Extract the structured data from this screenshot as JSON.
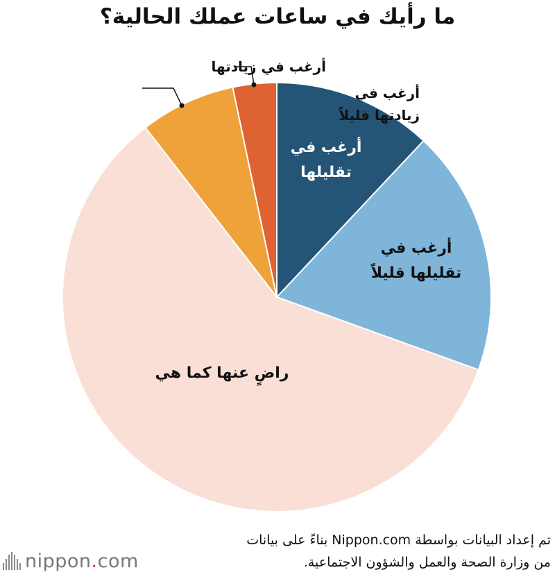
{
  "chart_data": {
    "type": "pie",
    "title": "ما رأيك في ساعات عملك الحالية؟",
    "slices": [
      {
        "label": "أرغب في تقليلها",
        "lines": [
          "أرغب في",
          "تقليلها"
        ],
        "value": 12,
        "color": "#245577",
        "text_color": "#ffffff"
      },
      {
        "label": "أرغب في تقليلها قليلاً",
        "lines": [
          "أرغب في",
          "تقليلها قليلاً"
        ],
        "value": 18.5,
        "color": "#7fb5d9",
        "text_color": "#111111"
      },
      {
        "label": "راضٍ عنها كما هي",
        "lines": [
          "راضٍ عنها كما هي"
        ],
        "value": 59,
        "color": "#f9dfd6",
        "text_color": "#111111"
      },
      {
        "label": "أرغب في زيادتها قليلاً",
        "lines": [
          "أرغب في",
          "زيادتها قليلاً"
        ],
        "value": 7.2,
        "color": "#f0a23a",
        "text_color": "#111111"
      },
      {
        "label": "أرغب في زيادتها",
        "lines": [
          "أرغب في زيادتها"
        ],
        "value": 3.3,
        "color": "#de6232",
        "text_color": "#111111"
      }
    ],
    "start_angle_deg": 0,
    "direction": "clockwise"
  },
  "footer": {
    "line1": "تم إعداد البيانات بواسطة Nippon.com بناءً على بيانات",
    "line2": "من وزارة الصحة والعمل والشؤون الاجتماعية."
  },
  "logo": {
    "text_main": "nippon",
    "text_dot": ".",
    "text_end": "com"
  }
}
